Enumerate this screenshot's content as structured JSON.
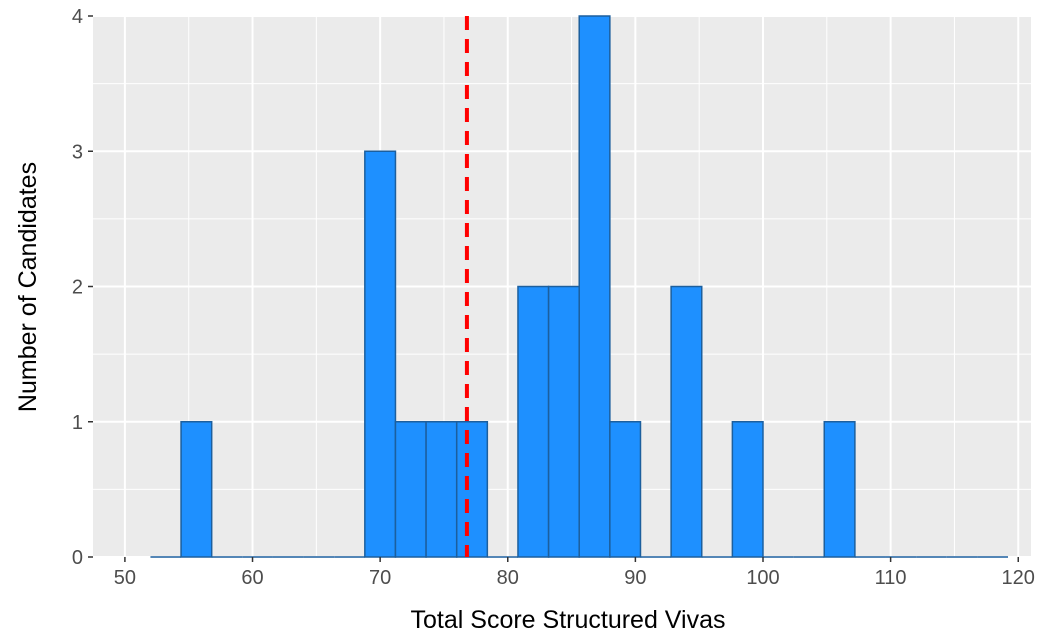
{
  "chart_data": {
    "type": "bar",
    "subtype": "histogram",
    "xlabel": "Total Score Structured Vivas",
    "ylabel": "Number of Candidates",
    "xlim": [
      47.5,
      121
    ],
    "ylim": [
      0,
      4
    ],
    "x_ticks": [
      50,
      60,
      70,
      80,
      90,
      100,
      110,
      120
    ],
    "y_ticks": [
      0,
      1,
      2,
      3,
      4
    ],
    "grid": true,
    "legend": "none",
    "bin_width": 2.4,
    "bins": [
      {
        "start": 52.0,
        "end": 54.4,
        "count": 0
      },
      {
        "start": 54.4,
        "end": 56.8,
        "count": 1
      },
      {
        "start": 56.8,
        "end": 59.2,
        "count": 0
      },
      {
        "start": 59.2,
        "end": 61.6,
        "count": 0
      },
      {
        "start": 61.6,
        "end": 64.0,
        "count": 0
      },
      {
        "start": 64.0,
        "end": 66.4,
        "count": 0
      },
      {
        "start": 66.4,
        "end": 68.8,
        "count": 0
      },
      {
        "start": 68.8,
        "end": 71.2,
        "count": 3
      },
      {
        "start": 71.2,
        "end": 73.6,
        "count": 1
      },
      {
        "start": 73.6,
        "end": 76.0,
        "count": 1
      },
      {
        "start": 76.0,
        "end": 78.4,
        "count": 1
      },
      {
        "start": 78.4,
        "end": 80.8,
        "count": 0
      },
      {
        "start": 80.8,
        "end": 83.2,
        "count": 2
      },
      {
        "start": 83.2,
        "end": 85.6,
        "count": 2
      },
      {
        "start": 85.6,
        "end": 88.0,
        "count": 4
      },
      {
        "start": 88.0,
        "end": 90.4,
        "count": 1
      },
      {
        "start": 90.4,
        "end": 92.8,
        "count": 0
      },
      {
        "start": 92.8,
        "end": 95.2,
        "count": 2
      },
      {
        "start": 95.2,
        "end": 97.6,
        "count": 0
      },
      {
        "start": 97.6,
        "end": 100.0,
        "count": 1
      },
      {
        "start": 100.0,
        "end": 102.4,
        "count": 0
      },
      {
        "start": 102.4,
        "end": 104.8,
        "count": 0
      },
      {
        "start": 104.8,
        "end": 107.2,
        "count": 1
      },
      {
        "start": 107.2,
        "end": 109.6,
        "count": 0
      },
      {
        "start": 109.6,
        "end": 112.0,
        "count": 0
      },
      {
        "start": 112.0,
        "end": 114.4,
        "count": 0
      },
      {
        "start": 114.4,
        "end": 116.8,
        "count": 0
      },
      {
        "start": 116.8,
        "end": 119.2,
        "count": 0
      }
    ],
    "reference_line": {
      "x": 76.8,
      "style": "dashed",
      "color": "#ff0000"
    },
    "colors": {
      "bar_fill": "#1e90ff",
      "bar_outline": "#1c5f9e",
      "panel_background": "#ebebeb",
      "grid": "#ffffff"
    }
  }
}
